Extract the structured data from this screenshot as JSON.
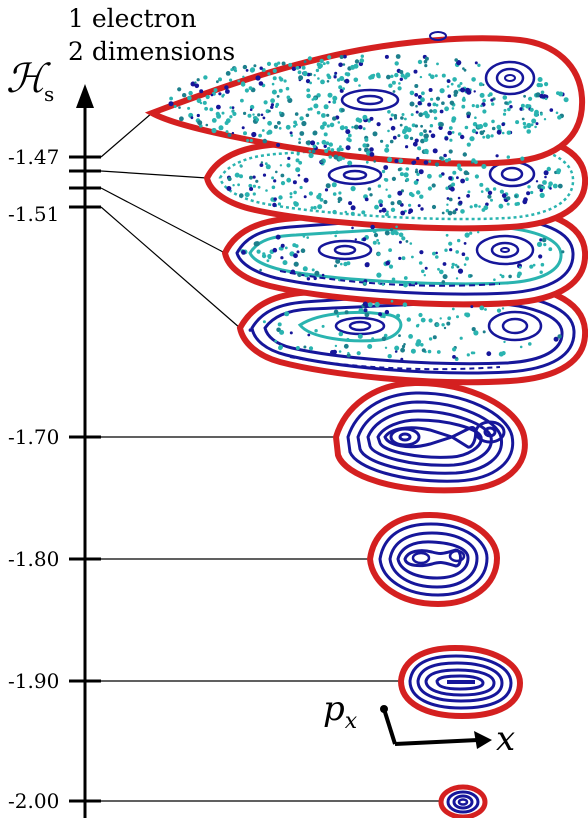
{
  "title_lines": [
    "1 electron",
    "2 dimensions"
  ],
  "axis": {
    "symbol": "ℋ",
    "subscript": "s",
    "ticks": [
      "-1.47",
      "-1.51",
      "-1.70",
      "-1.80",
      "-1.90",
      "-2.00"
    ]
  },
  "phase_axes": {
    "vertical": "p",
    "vertical_sub": "x",
    "horizontal": "x"
  },
  "colors": {
    "boundary": "#d42020",
    "orbit": "#16169a",
    "chaos": "#2ab4b0",
    "chaos_dark": "#1d7f8c",
    "axis": "#000000"
  },
  "surfaces": [
    {
      "energy": "-1.47",
      "regime": "chaotic"
    },
    {
      "energy": "-1.48",
      "regime": "chaotic"
    },
    {
      "energy": "-1.50",
      "regime": "mixed"
    },
    {
      "energy": "-1.51",
      "regime": "mixed"
    },
    {
      "energy": "-1.70",
      "regime": "regular"
    },
    {
      "energy": "-1.80",
      "regime": "regular"
    },
    {
      "energy": "-1.90",
      "regime": "regular"
    },
    {
      "energy": "-2.00",
      "regime": "regular"
    }
  ]
}
